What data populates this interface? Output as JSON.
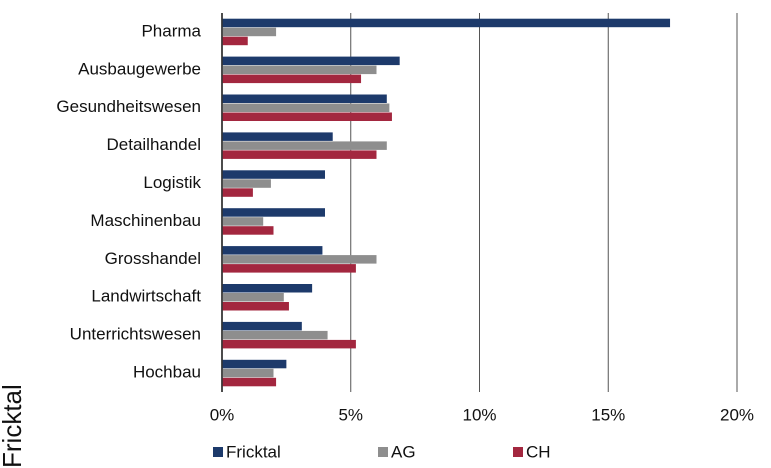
{
  "chart_data": {
    "type": "bar",
    "orientation": "horizontal",
    "side_label": "Fricktal",
    "categories": [
      "Pharma",
      "Ausbaugewerbe",
      "Gesundheitswesen",
      "Detailhandel",
      "Logistik",
      "Maschinenbau",
      "Grosshandel",
      "Landwirtschaft",
      "Unterrichtswesen",
      "Hochbau"
    ],
    "series": [
      {
        "name": "Fricktal",
        "color": "#1d3a6b",
        "values": [
          17.4,
          6.9,
          6.4,
          4.3,
          4.0,
          4.0,
          3.9,
          3.5,
          3.1,
          2.5
        ]
      },
      {
        "name": "AG",
        "color": "#8e8e8e",
        "values": [
          2.1,
          6.0,
          6.5,
          6.4,
          1.9,
          1.6,
          6.0,
          2.4,
          4.1,
          2.0
        ]
      },
      {
        "name": "CH",
        "color": "#a3273f",
        "values": [
          1.0,
          5.4,
          6.6,
          6.0,
          1.2,
          2.0,
          5.2,
          2.6,
          5.2,
          2.1
        ]
      }
    ],
    "xlim": [
      0,
      20
    ],
    "xticks": [
      {
        "value": 0,
        "label": "0%"
      },
      {
        "value": 5,
        "label": "5%"
      },
      {
        "value": 10,
        "label": "10%"
      },
      {
        "value": 15,
        "label": "15%"
      },
      {
        "value": 20,
        "label": "20%"
      }
    ],
    "grid": true,
    "legend": "bottom"
  }
}
